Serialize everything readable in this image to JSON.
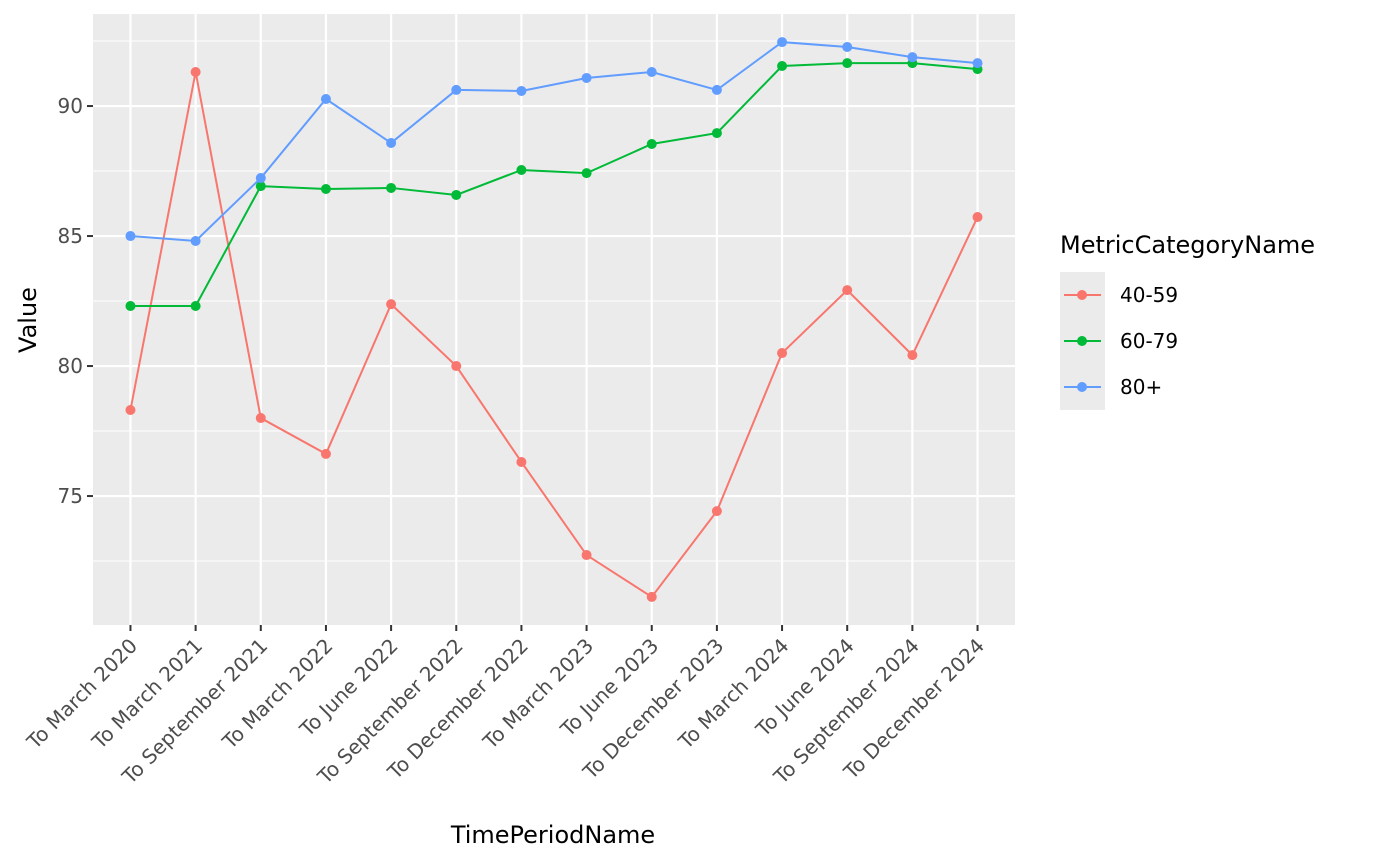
{
  "chart_data": {
    "type": "line",
    "x_label": "TimePeriodName",
    "y_label": "Value",
    "legend_title": "MetricCategoryName",
    "categories": [
      "To March 2020",
      "To March 2021",
      "To September 2021",
      "To March 2022",
      "To June 2022",
      "To September 2022",
      "To December 2022",
      "To March 2023",
      "To June 2023",
      "To December 2023",
      "To March 2024",
      "To June 2024",
      "To September 2024",
      "To December 2024"
    ],
    "series": [
      {
        "name": "40-59",
        "color": "#f8766d",
        "values": [
          78.31,
          91.31,
          78.0,
          76.62,
          82.38,
          80.0,
          76.31,
          72.73,
          71.12,
          74.42,
          80.5,
          82.92,
          80.42,
          85.73
        ]
      },
      {
        "name": "60-79",
        "color": "#00ba38",
        "values": [
          82.31,
          82.31,
          86.92,
          86.81,
          86.85,
          86.58,
          87.54,
          87.42,
          88.54,
          88.96,
          91.54,
          91.65,
          91.65,
          91.42
        ]
      },
      {
        "name": "80+",
        "color": "#619cff",
        "values": [
          85.0,
          84.81,
          87.23,
          90.27,
          88.58,
          90.62,
          90.58,
          91.08,
          91.31,
          90.62,
          92.46,
          92.27,
          91.88,
          91.65
        ]
      }
    ],
    "ylim": [
      70.04,
      93.54
    ],
    "yticks": [
      75,
      80,
      85,
      90
    ],
    "minor_grid": [
      72.5,
      77.5,
      82.5,
      87.5,
      92.5
    ],
    "grid": true,
    "legend": "right"
  }
}
